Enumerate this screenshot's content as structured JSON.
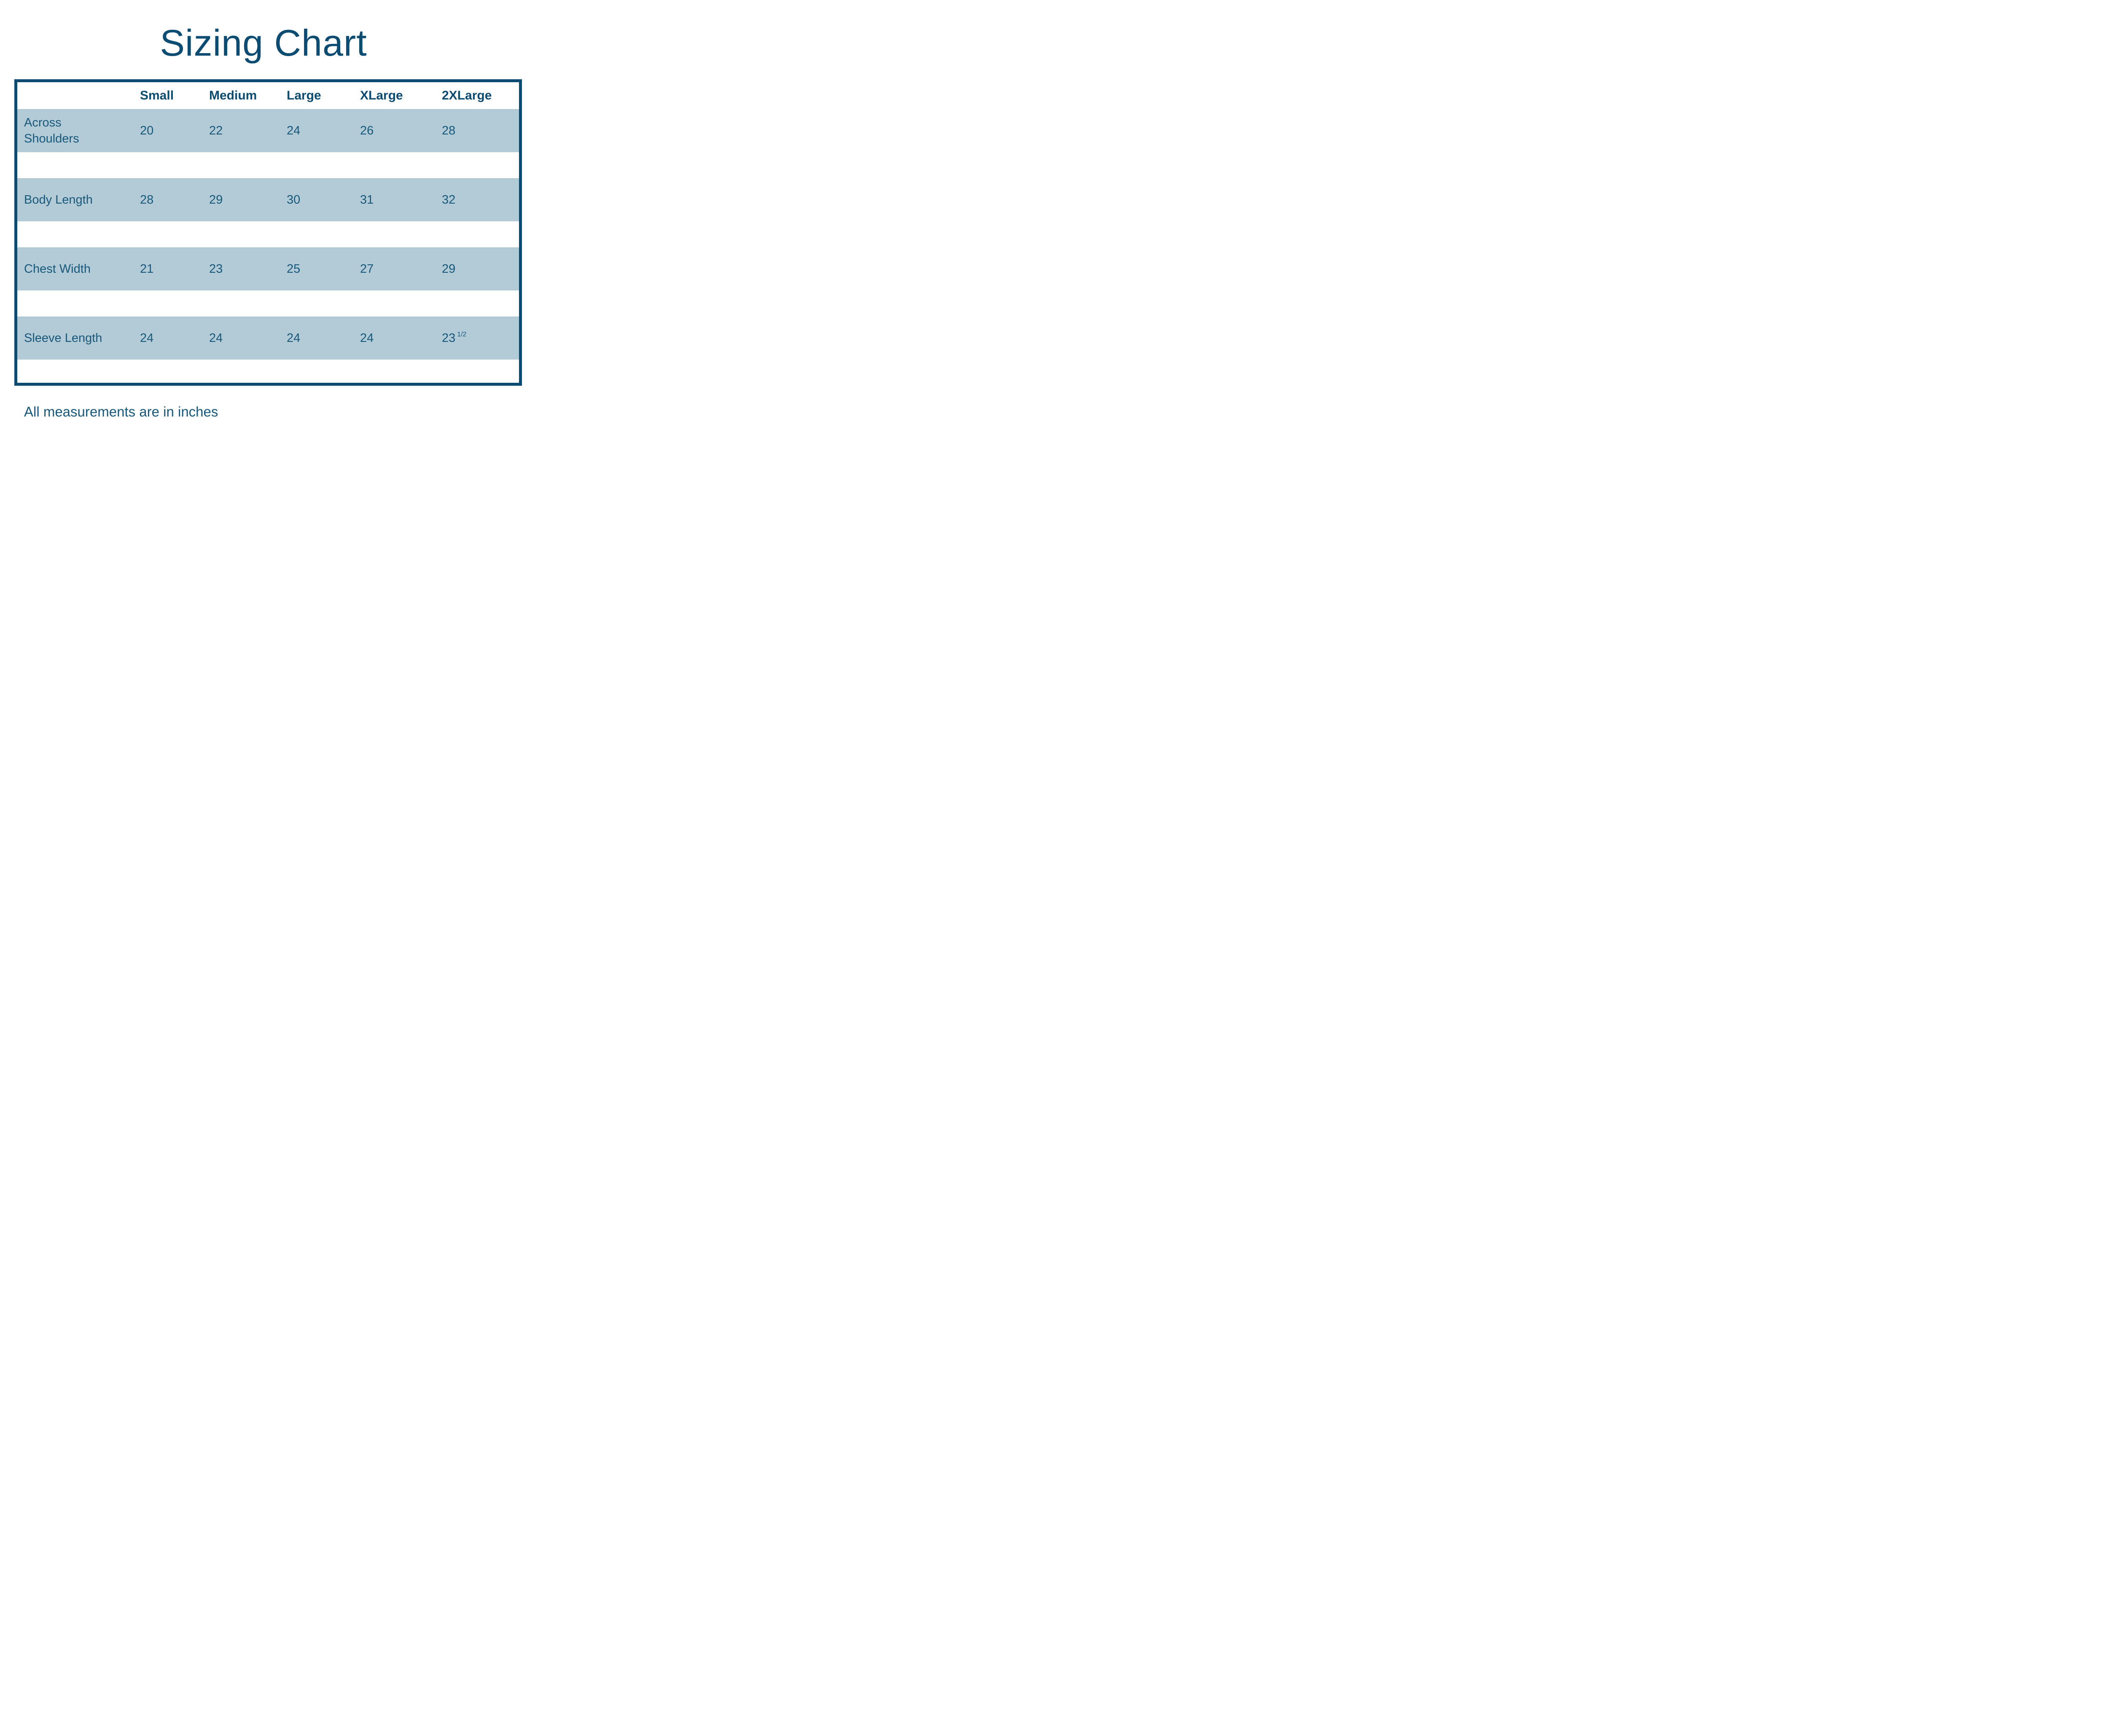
{
  "page": {
    "title": "Sizing Chart",
    "note": "All measurements are in inches"
  },
  "colors": {
    "accent": "#0d4c72",
    "band": "#b2cbd7",
    "text": "#17587b"
  },
  "table": {
    "header": [
      "",
      "Small",
      "Medium",
      "Large",
      "XLarge",
      "2XLarge"
    ],
    "rows": [
      {
        "label": "Across Shoulders",
        "values": [
          "20",
          "22",
          "24",
          "26",
          "28"
        ]
      },
      {
        "label": "Body Length",
        "values": [
          "28",
          "29",
          "30",
          "31",
          "32"
        ]
      },
      {
        "label": "Chest Width",
        "values": [
          "21",
          "23",
          "25",
          "27",
          "29"
        ]
      },
      {
        "label": "Sleeve Length",
        "values": [
          "24",
          "24",
          "24",
          "24",
          {
            "text": "23",
            "sup": "1/2"
          }
        ]
      }
    ]
  },
  "chart_data": {
    "type": "table",
    "title": "Sizing Chart",
    "columns": [
      "Small",
      "Medium",
      "Large",
      "XLarge",
      "2XLarge"
    ],
    "rows": [
      {
        "label": "Across Shoulders",
        "values": [
          "20",
          "22",
          "24",
          "26",
          "28"
        ]
      },
      {
        "label": "Body Length",
        "values": [
          "28",
          "29",
          "30",
          "31",
          "32"
        ]
      },
      {
        "label": "Chest Width",
        "values": [
          "21",
          "23",
          "25",
          "27",
          "29"
        ]
      },
      {
        "label": "Sleeve Length",
        "values": [
          "24",
          "24",
          "24",
          "24",
          "23 1/2"
        ]
      }
    ],
    "footnote": "All measurements are in inches",
    "units": "inches"
  }
}
